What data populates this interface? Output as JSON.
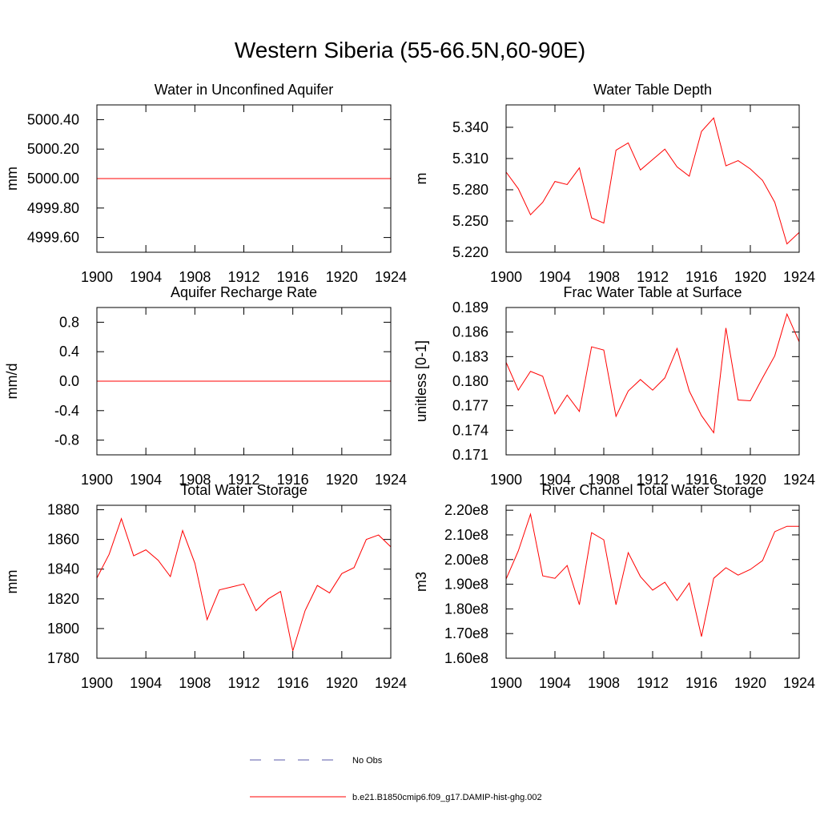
{
  "title": "Western Siberia (55-66.5N,60-90E)",
  "legend": [
    {
      "name": "No Obs",
      "color": "#5a5aa8",
      "dash": true
    },
    {
      "name": "b.e21.B1850cmip6.f09_g17.DAMIP-hist-ghg.002",
      "color": "#ff0000",
      "dash": false
    }
  ],
  "chart_data": [
    {
      "type": "line",
      "title": "Water in Unconfined Aquifer",
      "ylabel": "mm",
      "color": "#ff0000",
      "x": [
        1900,
        1901,
        1902,
        1903,
        1904,
        1905,
        1906,
        1907,
        1908,
        1909,
        1910,
        1911,
        1912,
        1913,
        1914,
        1915,
        1916,
        1917,
        1918,
        1919,
        1920,
        1921,
        1922,
        1923,
        1924
      ],
      "values": [
        5000,
        5000,
        5000,
        5000,
        5000,
        5000,
        5000,
        5000,
        5000,
        5000,
        5000,
        5000,
        5000,
        5000,
        5000,
        5000,
        5000,
        5000,
        5000,
        5000,
        5000,
        5000,
        5000,
        5000,
        5000
      ],
      "xlim": [
        1900,
        1924
      ],
      "xticks": [
        1900,
        1904,
        1908,
        1912,
        1916,
        1920,
        1924
      ],
      "ylim": [
        4999.5,
        5000.5
      ],
      "yticks": [
        {
          "value": 4999.6,
          "label": "4999.60"
        },
        {
          "value": 4999.8,
          "label": "4999.80"
        },
        {
          "value": 5000,
          "label": "5000.00"
        },
        {
          "value": 5000.2,
          "label": "5000.20"
        },
        {
          "value": 5000.4,
          "label": "5000.40"
        }
      ]
    },
    {
      "type": "line",
      "title": "Water Table Depth",
      "ylabel": "m",
      "color": "#ff0000",
      "x": [
        1900,
        1901,
        1902,
        1903,
        1904,
        1905,
        1906,
        1907,
        1908,
        1909,
        1910,
        1911,
        1912,
        1913,
        1914,
        1915,
        1916,
        1917,
        1918,
        1919,
        1920,
        1921,
        1922,
        1923,
        1924
      ],
      "values": [
        5.297,
        5.281,
        5.256,
        5.268,
        5.288,
        5.285,
        5.301,
        5.253,
        5.248,
        5.318,
        5.325,
        5.299,
        5.309,
        5.319,
        5.302,
        5.293,
        5.336,
        5.349,
        5.303,
        5.308,
        5.3,
        5.289,
        5.268,
        5.228,
        5.239
      ],
      "xlim": [
        1900,
        1924
      ],
      "xticks": [
        1900,
        1904,
        1908,
        1912,
        1916,
        1920,
        1924
      ],
      "ylim": [
        5.22,
        5.3615
      ],
      "yticks": [
        {
          "value": 5.22,
          "label": "5.220"
        },
        {
          "value": 5.25,
          "label": "5.250"
        },
        {
          "value": 5.28,
          "label": "5.280"
        },
        {
          "value": 5.31,
          "label": "5.310"
        },
        {
          "value": 5.34,
          "label": "5.340"
        }
      ]
    },
    {
      "type": "line",
      "title": "Aquifer Recharge Rate",
      "ylabel": "mm/d",
      "color": "#ff0000",
      "x": [
        1900,
        1901,
        1902,
        1903,
        1904,
        1905,
        1906,
        1907,
        1908,
        1909,
        1910,
        1911,
        1912,
        1913,
        1914,
        1915,
        1916,
        1917,
        1918,
        1919,
        1920,
        1921,
        1922,
        1923,
        1924
      ],
      "values": [
        0,
        0,
        0,
        0,
        0,
        0,
        0,
        0,
        0,
        0,
        0,
        0,
        0,
        0,
        0,
        0,
        0,
        0,
        0,
        0,
        0,
        0,
        0,
        0,
        0
      ],
      "xlim": [
        1900,
        1924
      ],
      "xticks": [
        1900,
        1904,
        1908,
        1912,
        1916,
        1920,
        1924
      ],
      "ylim": [
        -1,
        1
      ],
      "yticks": [
        -0.8,
        -0.4,
        {
          "value": 0,
          "label": "0.0"
        },
        0.4,
        0.8
      ]
    },
    {
      "type": "line",
      "title": "Frac Water Table at Surface",
      "ylabel": "unitless [0-1]",
      "color": "#ff0000",
      "x": [
        1900,
        1901,
        1902,
        1903,
        1904,
        1905,
        1906,
        1907,
        1908,
        1909,
        1910,
        1911,
        1912,
        1913,
        1914,
        1915,
        1916,
        1917,
        1918,
        1919,
        1920,
        1921,
        1922,
        1923,
        1924
      ],
      "values": [
        0.1823,
        0.1789,
        0.1812,
        0.1806,
        0.176,
        0.1783,
        0.1763,
        0.1842,
        0.1838,
        0.1757,
        0.1788,
        0.1802,
        0.1789,
        0.1804,
        0.184,
        0.1788,
        0.1758,
        0.1737,
        0.1865,
        0.1777,
        0.1776,
        0.1804,
        0.1831,
        0.1882,
        0.1848
      ],
      "xlim": [
        1900,
        1924
      ],
      "xticks": [
        1900,
        1904,
        1908,
        1912,
        1916,
        1920,
        1924
      ],
      "ylim": [
        0.171,
        0.189
      ],
      "yticks": [
        0.171,
        0.174,
        0.177,
        {
          "value": 0.18,
          "label": "0.180"
        },
        0.183,
        0.186,
        0.189
      ]
    },
    {
      "type": "line",
      "title": "Total Water Storage",
      "ylabel": "mm",
      "color": "#ff0000",
      "x": [
        1900,
        1901,
        1902,
        1903,
        1904,
        1905,
        1906,
        1907,
        1908,
        1909,
        1910,
        1911,
        1912,
        1913,
        1914,
        1915,
        1916,
        1917,
        1918,
        1919,
        1920,
        1921,
        1922,
        1923,
        1924
      ],
      "values": [
        1834,
        1850,
        1874,
        1849,
        1853,
        1846,
        1835,
        1866,
        1844,
        1806,
        1826,
        1828,
        1830,
        1812,
        1820,
        1825,
        1785,
        1812,
        1829,
        1824,
        1837,
        1841,
        1860,
        1863,
        1855
      ],
      "xlim": [
        1900,
        1924
      ],
      "xticks": [
        1900,
        1904,
        1908,
        1912,
        1916,
        1920,
        1924
      ],
      "ylim": [
        1780,
        1883
      ],
      "yticks": [
        1780,
        1800,
        1820,
        1840,
        1860,
        1880
      ]
    },
    {
      "type": "line",
      "title": "River Channel Total Water Storage",
      "ylabel": "m3",
      "color": "#ff0000",
      "x": [
        1900,
        1901,
        1902,
        1903,
        1904,
        1905,
        1906,
        1907,
        1908,
        1909,
        1910,
        1911,
        1912,
        1913,
        1914,
        1915,
        1916,
        1917,
        1918,
        1919,
        1920,
        1921,
        1922,
        1923,
        1924
      ],
      "values": [
        192100000,
        203500000,
        218400000,
        193400000,
        192400000,
        197600000,
        181700000,
        210900000,
        208000000,
        181700000,
        202800000,
        193100000,
        187600000,
        190800000,
        183400000,
        190500000,
        168800000,
        192400000,
        196700000,
        193700000,
        196000000,
        199600000,
        211300000,
        213500000,
        213500000
      ],
      "xlim": [
        1900,
        1924
      ],
      "xticks": [
        1900,
        1904,
        1908,
        1912,
        1916,
        1920,
        1924
      ],
      "ylim": [
        160000000,
        222000000
      ],
      "yticks": [
        {
          "value": 160000000,
          "label": "1.60e8"
        },
        {
          "value": 170000000,
          "label": "1.70e8"
        },
        {
          "value": 180000000,
          "label": "1.80e8"
        },
        {
          "value": 190000000,
          "label": "1.90e8"
        },
        {
          "value": 200000000,
          "label": "2.00e8"
        },
        {
          "value": 210000000,
          "label": "2.10e8"
        },
        {
          "value": 220000000,
          "label": "2.20e8"
        }
      ]
    }
  ]
}
